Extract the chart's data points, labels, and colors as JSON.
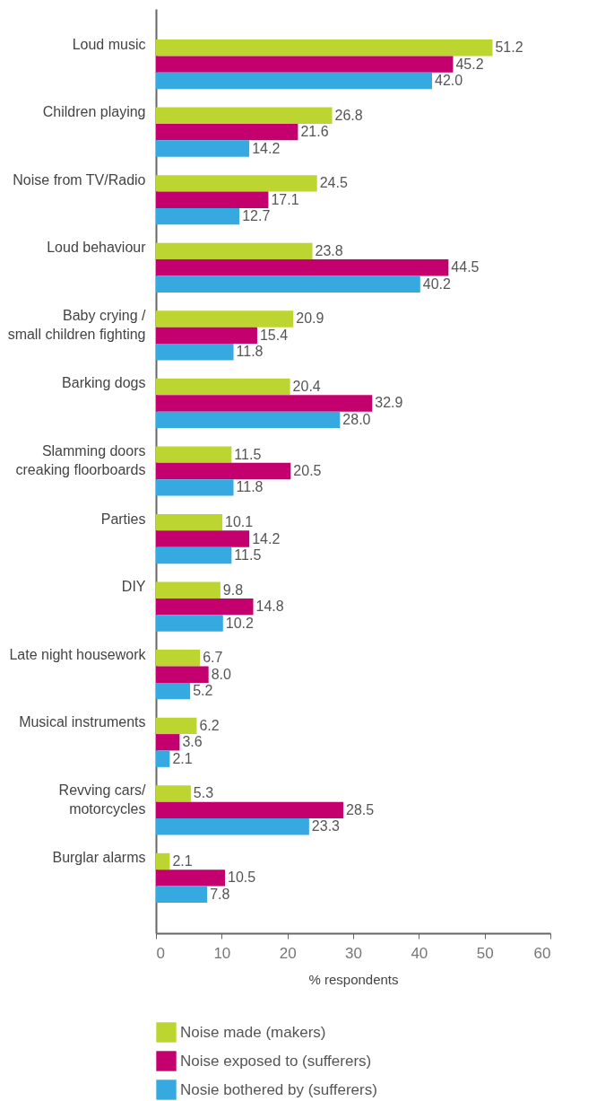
{
  "chart_data": {
    "type": "bar",
    "orientation": "horizontal",
    "xlabel": "% respondents",
    "categories": [
      "Loud music",
      "Children playing",
      "Noise from TV/Radio",
      "Loud behaviour",
      "Baby crying /\nsmall children fighting",
      "Barking dogs",
      "Slamming doors\ncreaking floorboards",
      "Parties",
      "DIY",
      "Late night housework",
      "Musical instruments",
      "Revving cars/\nmotorcycles",
      "Burglar alarms"
    ],
    "series": [
      {
        "name": "Noise made (makers)",
        "color": "#bdd531",
        "values": [
          51.2,
          26.8,
          24.5,
          23.8,
          20.9,
          20.4,
          11.5,
          10.1,
          9.8,
          6.7,
          6.2,
          5.3,
          2.1
        ],
        "value_labels": [
          "51.2",
          "26.8",
          "24.5",
          "23.8",
          "20.9",
          "20.4",
          "11.5",
          "10.1",
          "9.8",
          "6.7",
          "6.2",
          "5.3",
          "2.1"
        ]
      },
      {
        "name": "Noise exposed to (sufferers)",
        "color": "#c4006f",
        "values": [
          45.2,
          21.6,
          17.1,
          44.5,
          15.4,
          32.9,
          20.5,
          14.2,
          14.8,
          8.0,
          3.6,
          28.5,
          10.5
        ],
        "value_labels": [
          "45.2",
          "21.6",
          "17.1",
          "44.5",
          "15.4",
          "32.9",
          "20.5",
          "14.2",
          "14.8",
          "8.0",
          "3.6",
          "28.5",
          "10.5"
        ]
      },
      {
        "name": "Nosie bothered by (sufferers)",
        "color": "#36a9e1",
        "values": [
          42.0,
          14.2,
          12.7,
          40.2,
          11.8,
          28.0,
          11.8,
          11.5,
          10.2,
          5.2,
          2.1,
          23.3,
          7.8
        ],
        "value_labels": [
          "42.0",
          "14.2",
          "12.7",
          "40.2",
          "11.8",
          "28.0",
          "11.8",
          "11.5",
          "10.2",
          "5.2",
          "2.1",
          "23.3",
          "7.8"
        ]
      }
    ],
    "xlim": [
      0,
      60
    ],
    "xticks": [
      0,
      10,
      20,
      30,
      40,
      50,
      60
    ],
    "grid": false,
    "legend": "bottom"
  }
}
